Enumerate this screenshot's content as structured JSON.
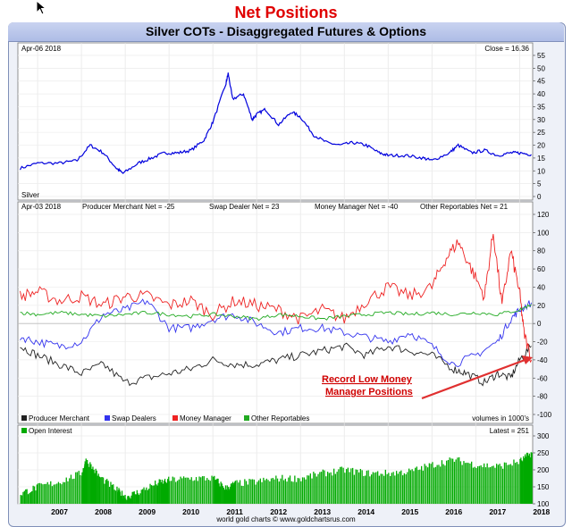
{
  "heading": "Net Positions",
  "chart_title": "Silver COTs - Disaggregated Futures & Options",
  "footer": "world gold charts © www.goldchartsrus.com",
  "years": [
    "2007",
    "2008",
    "2009",
    "2010",
    "2011",
    "2012",
    "2013",
    "2014",
    "2015",
    "2016",
    "2017",
    "2018"
  ],
  "colors": {
    "price": "#0000dd",
    "producer": "#222222",
    "swap": "#3333ee",
    "money": "#ee2222",
    "other": "#22aa22",
    "oi": "#00aa00",
    "arrow": "#e03030"
  },
  "chart_data": [
    {
      "type": "line",
      "panel": "price",
      "date_label": "Apr-06  2018",
      "close_label": "Close = 16.36",
      "series_label": "Silver",
      "ylim": [
        0,
        55
      ],
      "yticks": [
        0,
        5,
        10,
        15,
        20,
        25,
        30,
        35,
        40,
        45,
        50,
        55
      ],
      "x_range": [
        2006.55,
        2018.3
      ],
      "series": [
        {
          "name": "Silver",
          "x": [
            2006.6,
            2007.0,
            2007.5,
            2007.9,
            2008.2,
            2008.5,
            2008.8,
            2008.95,
            2009.3,
            2009.6,
            2009.9,
            2010.2,
            2010.5,
            2010.8,
            2011.0,
            2011.3,
            2011.35,
            2011.45,
            2011.7,
            2011.9,
            2012.0,
            2012.2,
            2012.5,
            2012.8,
            2013.0,
            2013.3,
            2013.6,
            2013.9,
            2014.2,
            2014.5,
            2014.8,
            2015.0,
            2015.4,
            2015.8,
            2016.0,
            2016.4,
            2016.6,
            2016.9,
            2017.2,
            2017.5,
            2017.8,
            2018.0,
            2018.27
          ],
          "values": [
            11,
            13,
            13,
            14,
            20,
            17,
            11,
            9,
            13,
            15,
            17,
            17,
            18,
            22,
            29,
            44,
            48,
            38,
            40,
            30,
            32,
            34,
            28,
            33,
            31,
            24,
            21,
            20,
            21,
            20,
            17,
            16,
            16,
            15,
            14,
            17,
            20,
            17,
            18,
            16,
            17,
            17,
            16.36
          ]
        }
      ]
    },
    {
      "type": "line",
      "panel": "cot",
      "date_label": "Apr-03  2018",
      "ylim": [
        -100,
        120
      ],
      "yticks": [
        -100,
        -80,
        -60,
        -40,
        -20,
        0,
        20,
        40,
        60,
        80,
        100,
        120
      ],
      "header_values": [
        "Producer Merchant Net = -25",
        "Swap Dealer Net = 23",
        "Money Manager Net = -40",
        "Other Reportables Net = 21"
      ],
      "legend": [
        "Producer Merchant",
        "Swap Dealers",
        "Money Manager",
        "Other Reportables"
      ],
      "legend_note": "volumes in 1000's",
      "annotation": [
        "Record Low Money",
        "Manager Positions"
      ],
      "series": [
        {
          "name": "Producer Merchant",
          "x": [
            2006.6,
            2007.0,
            2007.5,
            2008.0,
            2008.5,
            2009.0,
            2009.5,
            2010.0,
            2010.5,
            2011.0,
            2011.5,
            2012.0,
            2012.5,
            2013.0,
            2013.5,
            2014.0,
            2014.5,
            2015.0,
            2015.5,
            2016.0,
            2016.5,
            2016.8,
            2017.2,
            2017.5,
            2017.8,
            2018.0,
            2018.27
          ],
          "values": [
            -25,
            -35,
            -45,
            -55,
            -45,
            -65,
            -60,
            -55,
            -50,
            -40,
            -45,
            -45,
            -40,
            -35,
            -30,
            -25,
            -35,
            -25,
            -30,
            -35,
            -50,
            -55,
            -65,
            -55,
            -60,
            -40,
            -25
          ]
        },
        {
          "name": "Swap Dealers",
          "x": [
            2006.6,
            2007.0,
            2007.5,
            2008.0,
            2008.5,
            2009.0,
            2009.5,
            2010.0,
            2010.5,
            2011.0,
            2011.5,
            2012.0,
            2012.5,
            2013.0,
            2013.5,
            2014.0,
            2014.5,
            2015.0,
            2015.5,
            2016.0,
            2016.5,
            2017.0,
            2017.5,
            2017.8,
            2018.0,
            2018.27
          ],
          "values": [
            -15,
            -20,
            -25,
            -20,
            10,
            15,
            25,
            -5,
            -5,
            5,
            10,
            0,
            -10,
            -5,
            -5,
            -10,
            -15,
            -20,
            -10,
            -25,
            -45,
            -35,
            -20,
            5,
            15,
            23
          ]
        },
        {
          "name": "Money Manager",
          "x": [
            2006.6,
            2007.0,
            2007.5,
            2008.0,
            2008.5,
            2009.0,
            2009.5,
            2010.0,
            2010.5,
            2011.0,
            2011.5,
            2012.0,
            2012.5,
            2013.0,
            2013.5,
            2014.0,
            2014.5,
            2015.0,
            2015.5,
            2016.0,
            2016.3,
            2016.6,
            2016.9,
            2017.2,
            2017.4,
            2017.6,
            2017.8,
            2018.0,
            2018.1,
            2018.27
          ],
          "values": [
            30,
            35,
            25,
            30,
            20,
            30,
            30,
            20,
            25,
            10,
            25,
            20,
            15,
            5,
            15,
            5,
            25,
            40,
            30,
            40,
            70,
            90,
            60,
            30,
            100,
            20,
            80,
            35,
            -10,
            -40
          ]
        },
        {
          "name": "Other Reportables",
          "x": [
            2006.6,
            2007.0,
            2007.5,
            2008.0,
            2008.5,
            2009.0,
            2009.5,
            2010.0,
            2010.5,
            2011.0,
            2011.5,
            2012.0,
            2012.5,
            2013.0,
            2013.5,
            2014.0,
            2014.5,
            2015.0,
            2015.5,
            2016.0,
            2016.5,
            2017.0,
            2017.5,
            2018.0,
            2018.27
          ],
          "values": [
            12,
            10,
            12,
            10,
            8,
            10,
            12,
            10,
            8,
            10,
            8,
            5,
            10,
            8,
            5,
            8,
            10,
            12,
            10,
            12,
            10,
            12,
            10,
            15,
            21
          ]
        }
      ]
    },
    {
      "type": "bar",
      "panel": "open_interest",
      "series_label": "Open Interest",
      "latest_label": "Latest = 251",
      "ylim": [
        100,
        300
      ],
      "yticks": [
        100,
        150,
        200,
        250,
        300
      ],
      "series": [
        {
          "name": "Open Interest",
          "x": [
            2006.6,
            2007.0,
            2007.5,
            2008.0,
            2008.1,
            2008.4,
            2008.8,
            2009.0,
            2009.3,
            2009.7,
            2010.0,
            2010.5,
            2011.0,
            2011.3,
            2011.5,
            2012.0,
            2012.5,
            2013.0,
            2013.5,
            2014.0,
            2014.5,
            2015.0,
            2015.5,
            2016.0,
            2016.5,
            2017.0,
            2017.5,
            2018.0,
            2018.27
          ],
          "values": [
            130,
            150,
            165,
            190,
            230,
            180,
            140,
            120,
            135,
            160,
            170,
            175,
            175,
            145,
            160,
            165,
            175,
            175,
            190,
            200,
            190,
            190,
            195,
            215,
            230,
            215,
            210,
            225,
            251
          ]
        }
      ]
    }
  ]
}
